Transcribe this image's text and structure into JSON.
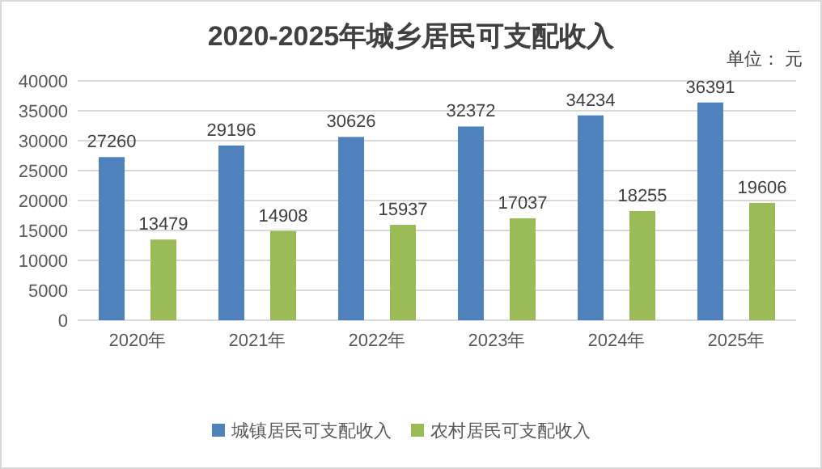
{
  "chart_data": {
    "type": "bar",
    "title": "2020-2025年城乡居民可支配收入",
    "annotations": [
      "单位： 元"
    ],
    "categories": [
      "2020年",
      "2021年",
      "2022年",
      "2023年",
      "2024年",
      "2025年"
    ],
    "series": [
      {
        "name": "城镇居民可支配收入",
        "color": "#4f81bd",
        "values": [
          27260,
          29196,
          30626,
          32372,
          34234,
          36391
        ]
      },
      {
        "name": "农村居民可支配收入",
        "color": "#9bbb59",
        "values": [
          13479,
          14908,
          15937,
          17037,
          18255,
          19606
        ]
      }
    ],
    "ylim": [
      0,
      40000
    ],
    "yticks": [
      0,
      5000,
      10000,
      15000,
      20000,
      25000,
      30000,
      35000,
      40000
    ],
    "grid": "y",
    "legend": "bottom",
    "data_labels": true
  }
}
